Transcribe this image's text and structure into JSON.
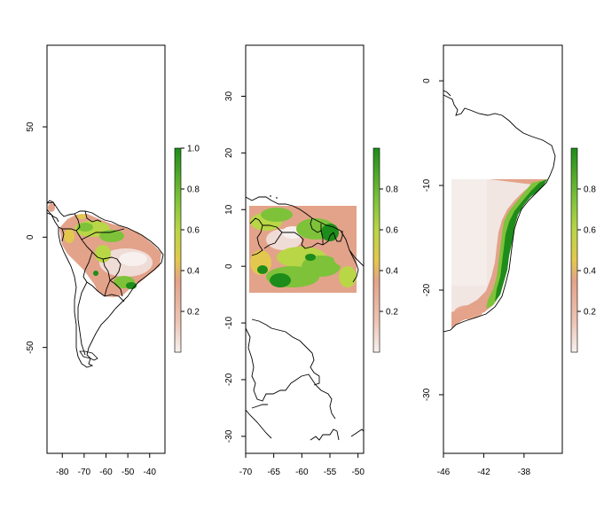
{
  "palette": {
    "low": "#f2f2f2",
    "midlow": "#e3a38a",
    "mid": "#e2c84e",
    "midhigh": "#7ec23a",
    "high": "#1e8c1a",
    "border": "#000000"
  },
  "panels": [
    {
      "id": "south-america",
      "x_range": [
        -87,
        -33
      ],
      "y_range": [
        -98,
        87
      ],
      "x_ticks": [
        -80,
        -70,
        -60,
        -50,
        -40
      ],
      "y_ticks": [
        50,
        0,
        -50
      ],
      "x_tick_labels": [
        "-80",
        "-70",
        "-60",
        "-50",
        "-40"
      ],
      "y_tick_labels": [
        "50",
        "0",
        "-50"
      ],
      "legend_ticks": [
        0.2,
        0.4,
        0.6,
        0.8,
        1.0
      ],
      "legend_tick_labels": [
        "0.2",
        "0.4",
        "0.6",
        "0.8",
        "1.0"
      ],
      "legend_range": [
        0.0,
        1.0
      ]
    },
    {
      "id": "northern-amazon",
      "x_range": [
        -70,
        -49
      ],
      "y_range": [
        -33,
        39
      ],
      "x_ticks": [
        -70,
        -65,
        -60,
        -55,
        -50
      ],
      "y_ticks": [
        30,
        20,
        10,
        0,
        -10,
        -20,
        -30
      ],
      "x_tick_labels": [
        "-70",
        "-65",
        "-60",
        "-55",
        "-50"
      ],
      "y_tick_labels": [
        "30",
        "20",
        "10",
        "0",
        "-10",
        "-20",
        "-30"
      ],
      "legend_ticks": [
        0.2,
        0.4,
        0.6,
        0.8
      ],
      "legend_tick_labels": [
        "0.2",
        "0.4",
        "0.6",
        "0.8"
      ],
      "legend_range": [
        0.0,
        1.0
      ]
    },
    {
      "id": "atlantic-coast",
      "x_range": [
        -46,
        -34.2
      ],
      "y_range": [
        -35.6,
        3.4
      ],
      "x_ticks": [
        -46,
        -42,
        -38
      ],
      "y_ticks": [
        0,
        -10,
        -20,
        -30
      ],
      "x_tick_labels": [
        "-46",
        "-42",
        "-38"
      ],
      "y_tick_labels": [
        "0",
        "-10",
        "-20",
        "-30"
      ],
      "legend_ticks": [
        0.2,
        0.4,
        0.6,
        0.8
      ],
      "legend_tick_labels": [
        "0.2",
        "0.4",
        "0.6",
        "0.8"
      ],
      "legend_range": [
        0.0,
        1.0
      ]
    }
  ]
}
